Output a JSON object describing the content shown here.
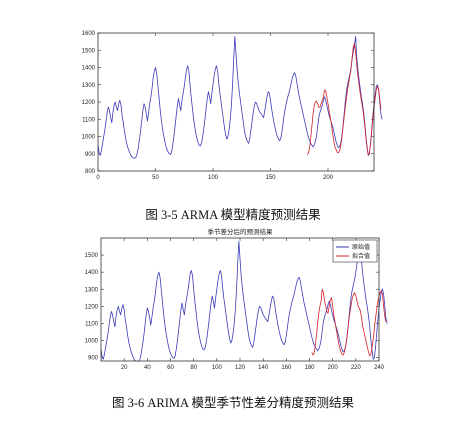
{
  "figures": [
    {
      "caption": "图 3-5 ARMA 模型精度预测结果"
    },
    {
      "caption": "图 3-6    ARIMA 模型季节性差分精度预测结果"
    }
  ],
  "colors": {
    "actual": "#3b3bb8",
    "predicted": "#d4202a",
    "frame": "#333333"
  },
  "chart_data": [
    {
      "type": "line",
      "title": "",
      "xlabel": "",
      "ylabel": "",
      "xlim": [
        0,
        240
      ],
      "ylim": [
        800,
        1600
      ],
      "xticks": [
        0,
        50,
        100,
        150,
        200
      ],
      "yticks": [
        800,
        900,
        1000,
        1100,
        1200,
        1300,
        1400,
        1500,
        1600
      ],
      "grid": false,
      "legend": null,
      "series": [
        {
          "x_start": 0,
          "values": [
            950,
            905,
            890,
            920,
            960,
            1000,
            1040,
            1090,
            1140,
            1170,
            1150,
            1110,
            1080,
            1140,
            1180,
            1200,
            1170,
            1150,
            1190,
            1210,
            1180,
            1120,
            1080,
            1030,
            990,
            960,
            935,
            915,
            900,
            885,
            880,
            875,
            875,
            880,
            900,
            935,
            980,
            1030,
            1090,
            1150,
            1190,
            1170,
            1130,
            1090,
            1140,
            1190,
            1230,
            1280,
            1340,
            1380,
            1400,
            1370,
            1300,
            1230,
            1160,
            1100,
            1050,
            1010,
            975,
            945,
            925,
            910,
            900,
            895,
            910,
            950,
            1000,
            1060,
            1120,
            1180,
            1220,
            1180,
            1150,
            1210,
            1250,
            1290,
            1340,
            1390,
            1410,
            1380,
            1300,
            1230,
            1170,
            1110,
            1060,
            1020,
            990,
            965,
            950,
            945,
            960,
            995,
            1045,
            1100,
            1160,
            1220,
            1260,
            1230,
            1190,
            1250,
            1300,
            1350,
            1390,
            1410,
            1380,
            1310,
            1250,
            1200,
            1150,
            1100,
            1050,
            1010,
            985,
            1000,
            1040,
            1100,
            1180,
            1300,
            1450,
            1580,
            1480,
            1380,
            1310,
            1250,
            1200,
            1150,
            1100,
            1050,
            1010,
            985,
            970,
            960,
            990,
            1040,
            1090,
            1140,
            1180,
            1200,
            1190,
            1170,
            1150,
            1140,
            1130,
            1120,
            1110,
            1150,
            1190,
            1230,
            1260,
            1250,
            1210,
            1160,
            1120,
            1080,
            1050,
            1020,
            1000,
            985,
            975,
            990,
            1030,
            1080,
            1130,
            1170,
            1200,
            1230,
            1250,
            1280,
            1310,
            1340,
            1360,
            1370,
            1350,
            1310,
            1270,
            1230,
            1200,
            1170,
            1140,
            1110,
            1080,
            1050,
            1020,
            995,
            975,
            960,
            950,
            940,
            950,
            970,
            1000,
            1060,
            1110,
            1140,
            1160,
            1180,
            1210,
            1230,
            1210,
            1180,
            1150,
            1120,
            1100,
            1080,
            1060,
            1030,
            1000,
            970,
            950,
            935,
            940,
            960,
            1000,
            1060,
            1130,
            1200,
            1260,
            1300,
            1330,
            1360,
            1400,
            1450,
            1490,
            1530,
            1580,
            1460,
            1390,
            1330,
            1280,
            1230,
            1190,
            1140,
            1080,
            1000,
            940,
            890,
            900,
            960,
            1040,
            1120,
            1190,
            1240,
            1290,
            1300,
            1270,
            1200,
            1130,
            1100
          ]
        },
        {
          "x_start": 182,
          "values": [
            895,
            905,
            935,
            990,
            1060,
            1130,
            1180,
            1200,
            1205,
            1190,
            1170,
            1170,
            1190,
            1210,
            1230,
            1270,
            1265,
            1230,
            1190,
            1150,
            1110,
            1070,
            1020,
            975,
            940,
            925,
            910,
            905,
            915,
            945,
            990,
            1050,
            1110,
            1170,
            1220,
            1270,
            1310,
            1350,
            1390,
            1460,
            1520,
            1540,
            1490,
            1410,
            1350,
            1300,
            1250,
            1210,
            1170,
            1120,
            1060,
            990,
            930,
            895,
            905,
            955,
            1030,
            1100,
            1170,
            1220,
            1270,
            1290,
            1280,
            1220,
            1160
          ]
        }
      ]
    },
    {
      "type": "line",
      "title": "季节差分后的预测结果",
      "xlabel": "",
      "ylabel": "",
      "xlim": [
        0,
        240
      ],
      "ylim": [
        880,
        1600
      ],
      "xticks": [
        20,
        40,
        60,
        80,
        100,
        120,
        140,
        160,
        180,
        200,
        220,
        240
      ],
      "yticks": [
        900,
        1000,
        1100,
        1200,
        1300,
        1400,
        1500
      ],
      "grid": false,
      "legend": {
        "position": "top-right",
        "entries": [
          "原始值",
          "拟合值"
        ]
      },
      "series": [
        {
          "name": "原始值",
          "x_start": 0,
          "values": [
            950,
            905,
            890,
            920,
            960,
            1000,
            1040,
            1090,
            1140,
            1170,
            1150,
            1110,
            1080,
            1140,
            1180,
            1200,
            1170,
            1150,
            1190,
            1210,
            1180,
            1120,
            1080,
            1030,
            990,
            960,
            935,
            915,
            900,
            885,
            880,
            875,
            875,
            880,
            900,
            935,
            980,
            1030,
            1090,
            1150,
            1190,
            1170,
            1130,
            1090,
            1140,
            1190,
            1230,
            1280,
            1340,
            1380,
            1400,
            1370,
            1300,
            1230,
            1160,
            1100,
            1050,
            1010,
            975,
            945,
            925,
            910,
            900,
            895,
            910,
            950,
            1000,
            1060,
            1120,
            1180,
            1220,
            1180,
            1150,
            1210,
            1250,
            1290,
            1340,
            1390,
            1410,
            1380,
            1300,
            1230,
            1170,
            1110,
            1060,
            1020,
            990,
            965,
            950,
            945,
            960,
            995,
            1045,
            1100,
            1160,
            1220,
            1260,
            1230,
            1190,
            1250,
            1300,
            1350,
            1390,
            1410,
            1380,
            1310,
            1250,
            1200,
            1150,
            1100,
            1050,
            1010,
            985,
            1000,
            1040,
            1100,
            1180,
            1300,
            1450,
            1580,
            1480,
            1380,
            1310,
            1250,
            1200,
            1150,
            1100,
            1050,
            1010,
            985,
            970,
            960,
            990,
            1040,
            1090,
            1140,
            1180,
            1200,
            1190,
            1170,
            1150,
            1140,
            1130,
            1120,
            1110,
            1150,
            1190,
            1230,
            1260,
            1250,
            1210,
            1160,
            1120,
            1080,
            1050,
            1020,
            1000,
            985,
            975,
            990,
            1030,
            1080,
            1130,
            1170,
            1200,
            1230,
            1250,
            1280,
            1310,
            1340,
            1360,
            1370,
            1350,
            1310,
            1270,
            1230,
            1200,
            1170,
            1140,
            1110,
            1080,
            1050,
            1020,
            995,
            975,
            960,
            950,
            940,
            950,
            970,
            1000,
            1060,
            1110,
            1140,
            1160,
            1180,
            1210,
            1230,
            1210,
            1180,
            1150,
            1120,
            1100,
            1080,
            1060,
            1030,
            1000,
            970,
            950,
            935,
            940,
            960,
            1000,
            1060,
            1130,
            1200,
            1260,
            1300,
            1330,
            1360,
            1400,
            1450,
            1490,
            1530,
            1580,
            1460,
            1390,
            1330,
            1280,
            1230,
            1190,
            1140,
            1080,
            1000,
            940,
            890,
            900,
            960,
            1040,
            1120,
            1190,
            1240,
            1290,
            1300,
            1270,
            1200,
            1130,
            1100
          ]
        },
        {
          "name": "拟合值",
          "x_start": 182,
          "values": [
            930,
            915,
            925,
            970,
            1030,
            1100,
            1160,
            1200,
            1230,
            1300,
            1280,
            1230,
            1200,
            1170,
            1160,
            1200,
            1240,
            1250,
            1200,
            1150,
            1110,
            1070,
            1030,
            990,
            960,
            935,
            920,
            915,
            930,
            960,
            1000,
            1060,
            1120,
            1170,
            1210,
            1250,
            1270,
            1280,
            1260,
            1230,
            1200,
            1190,
            1170,
            1130,
            1080,
            1050,
            1020,
            990,
            960,
            930,
            910,
            920,
            960,
            1010,
            1070,
            1130,
            1180,
            1230,
            1260,
            1280,
            1290,
            1270,
            1200,
            1140,
            1110
          ]
        }
      ]
    }
  ]
}
